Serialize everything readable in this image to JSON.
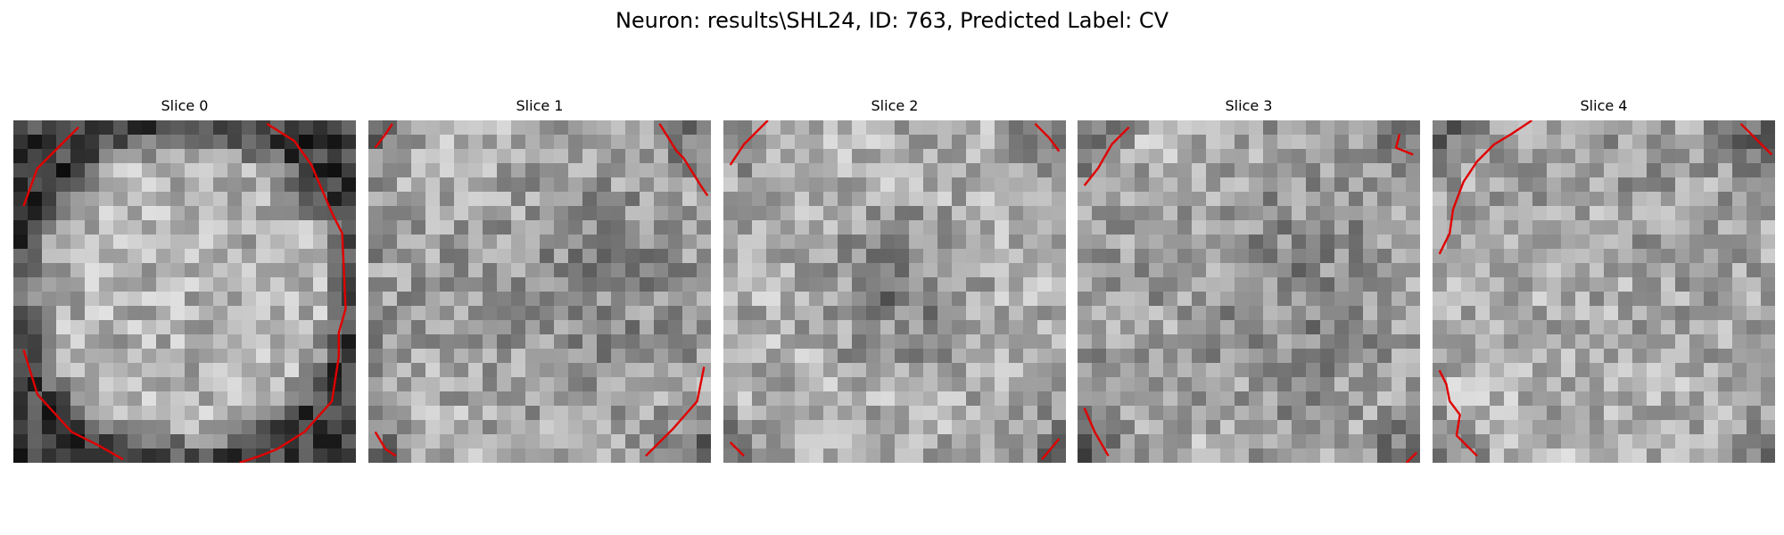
{
  "figure": {
    "title": "Neuron: results\\SHL24, ID: 763, Predicted Label: CV",
    "contour_color": "#e00000"
  },
  "slices": [
    {
      "label": "Slice 0",
      "pattern": "bright-center-dark-ring",
      "contours": [
        [
          [
            0.03,
            0.25
          ],
          [
            0.07,
            0.14
          ],
          [
            0.12,
            0.09
          ],
          [
            0.19,
            0.02
          ]
        ],
        [
          [
            0.74,
            0.01
          ],
          [
            0.82,
            0.06
          ],
          [
            0.87,
            0.13
          ],
          [
            0.93,
            0.27
          ],
          [
            0.96,
            0.33
          ],
          [
            0.97,
            0.55
          ],
          [
            0.95,
            0.62
          ],
          [
            0.95,
            0.69
          ],
          [
            0.93,
            0.82
          ],
          [
            0.85,
            0.91
          ],
          [
            0.77,
            0.96
          ],
          [
            0.72,
            0.98
          ],
          [
            0.66,
            1.0
          ]
        ],
        [
          [
            0.03,
            0.67
          ],
          [
            0.07,
            0.8
          ],
          [
            0.17,
            0.91
          ],
          [
            0.25,
            0.95
          ],
          [
            0.32,
            0.99
          ]
        ]
      ]
    },
    {
      "label": "Slice 1",
      "pattern": "uniform-noise",
      "contours": [
        [
          [
            0.02,
            0.08
          ],
          [
            0.05,
            0.04
          ],
          [
            0.07,
            0.01
          ]
        ],
        [
          [
            0.85,
            0.01
          ],
          [
            0.9,
            0.09
          ],
          [
            0.92,
            0.11
          ],
          [
            0.97,
            0.19
          ],
          [
            0.99,
            0.22
          ]
        ],
        [
          [
            0.81,
            0.98
          ],
          [
            0.89,
            0.9
          ],
          [
            0.96,
            0.82
          ],
          [
            0.98,
            0.72
          ]
        ],
        [
          [
            0.02,
            0.91
          ],
          [
            0.05,
            0.96
          ],
          [
            0.08,
            0.98
          ]
        ]
      ]
    },
    {
      "label": "Slice 2",
      "pattern": "darker-center",
      "contours": [
        [
          [
            0.02,
            0.13
          ],
          [
            0.06,
            0.07
          ],
          [
            0.1,
            0.03
          ],
          [
            0.13,
            0.0
          ]
        ],
        [
          [
            0.91,
            0.01
          ],
          [
            0.95,
            0.05
          ],
          [
            0.98,
            0.09
          ]
        ],
        [
          [
            0.02,
            0.94
          ],
          [
            0.06,
            0.98
          ]
        ],
        [
          [
            0.93,
            0.99
          ],
          [
            0.98,
            0.93
          ]
        ]
      ]
    },
    {
      "label": "Slice 3",
      "pattern": "mottled",
      "contours": [
        [
          [
            0.02,
            0.19
          ],
          [
            0.06,
            0.14
          ],
          [
            0.1,
            0.07
          ],
          [
            0.15,
            0.02
          ]
        ],
        [
          [
            0.94,
            0.04
          ],
          [
            0.93,
            0.08
          ],
          [
            0.98,
            0.1
          ]
        ],
        [
          [
            0.02,
            0.84
          ],
          [
            0.05,
            0.91
          ],
          [
            0.09,
            0.98
          ]
        ],
        [
          [
            0.96,
            1.0
          ],
          [
            0.99,
            0.97
          ]
        ]
      ]
    },
    {
      "label": "Slice 4",
      "pattern": "bright-lower-left",
      "contours": [
        [
          [
            0.02,
            0.39
          ],
          [
            0.05,
            0.33
          ],
          [
            0.06,
            0.26
          ],
          [
            0.09,
            0.18
          ],
          [
            0.13,
            0.12
          ],
          [
            0.18,
            0.07
          ],
          [
            0.23,
            0.04
          ],
          [
            0.29,
            0.0
          ]
        ],
        [
          [
            0.9,
            0.01
          ],
          [
            0.96,
            0.07
          ],
          [
            0.99,
            0.1
          ]
        ],
        [
          [
            0.02,
            0.73
          ],
          [
            0.04,
            0.77
          ],
          [
            0.05,
            0.82
          ],
          [
            0.08,
            0.86
          ],
          [
            0.07,
            0.92
          ],
          [
            0.11,
            0.96
          ],
          [
            0.13,
            0.98
          ]
        ]
      ]
    }
  ]
}
